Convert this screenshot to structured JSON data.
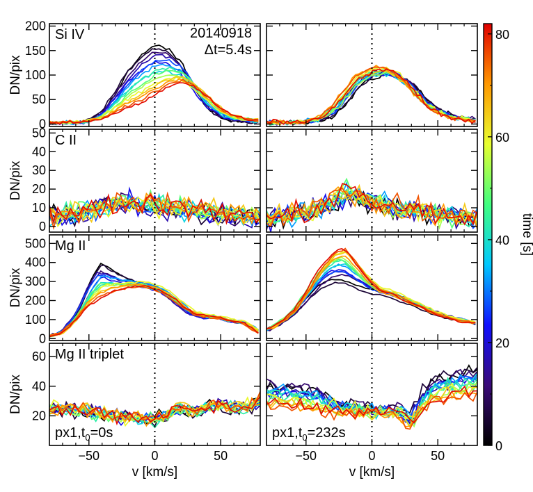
{
  "chart_data": {
    "type": "line",
    "shared_xlabel": "v [km/s]",
    "shared_ylabel": "DN/pix",
    "xlim": [
      -80,
      80
    ],
    "xticks": [
      -50,
      0,
      50
    ],
    "colorbar": {
      "label": "time [s]",
      "range": [
        0,
        82
      ],
      "ticks": [
        0,
        20,
        40,
        60,
        80
      ],
      "colormap": "rainbow",
      "stops": [
        "#000000",
        "#3a0a78",
        "#1010ff",
        "#00c8ff",
        "#40ff80",
        "#e8ff30",
        "#ff9800",
        "#e00000"
      ]
    },
    "annotations": {
      "date": "20140918",
      "cadence": "Δt=5.4s"
    },
    "rows": [
      {
        "label": "Si IV",
        "ylim": [
          -5,
          205
        ],
        "yticks": [
          0,
          50,
          100,
          150,
          200
        ]
      },
      {
        "label": "C II",
        "ylim": [
          -3,
          52
        ],
        "yticks": [
          0,
          10,
          20,
          30,
          40,
          50
        ]
      },
      {
        "label": "Mg II",
        "ylim": [
          -10,
          545
        ],
        "yticks": [
          0,
          100,
          200,
          300,
          400,
          500
        ]
      },
      {
        "label": "Mg II triplet",
        "ylim": [
          0,
          69
        ],
        "yticks": [
          20,
          40,
          60
        ]
      }
    ],
    "columns": [
      {
        "pixel": "px1",
        "t0_prefix": "px1,t",
        "t0_sub": "0",
        "t0_value": "=0s"
      },
      {
        "pixel": "px1",
        "t0_prefix": "px1,t",
        "t0_sub": "0",
        "t0_value": "=232s"
      }
    ],
    "series_times": [
      0,
      5.4,
      10.8,
      16.2,
      21.6,
      27,
      32.4,
      37.8,
      43.2,
      48.6,
      54,
      59.4,
      64.8,
      70.2,
      75.6,
      81
    ],
    "panels": [
      {
        "row": 0,
        "col": 0,
        "profile_early": [
          [
            -80,
            2
          ],
          [
            -60,
            3
          ],
          [
            -50,
            6
          ],
          [
            -40,
            25
          ],
          [
            -30,
            65
          ],
          [
            -20,
            110
          ],
          [
            -10,
            140
          ],
          [
            0,
            158
          ],
          [
            10,
            150
          ],
          [
            20,
            120
          ],
          [
            30,
            70
          ],
          [
            40,
            30
          ],
          [
            50,
            12
          ],
          [
            60,
            6
          ],
          [
            80,
            3
          ]
        ],
        "profile_late": [
          [
            -80,
            3
          ],
          [
            -60,
            4
          ],
          [
            -50,
            6
          ],
          [
            -40,
            10
          ],
          [
            -30,
            20
          ],
          [
            -20,
            30
          ],
          [
            -10,
            40
          ],
          [
            0,
            55
          ],
          [
            10,
            72
          ],
          [
            20,
            83
          ],
          [
            30,
            76
          ],
          [
            40,
            56
          ],
          [
            50,
            32
          ],
          [
            60,
            16
          ],
          [
            80,
            6
          ]
        ],
        "noise": 3
      },
      {
        "row": 0,
        "col": 1,
        "profile_early": [
          [
            -80,
            2
          ],
          [
            -60,
            2
          ],
          [
            -50,
            4
          ],
          [
            -40,
            8
          ],
          [
            -30,
            18
          ],
          [
            -20,
            45
          ],
          [
            -10,
            80
          ],
          [
            0,
            95
          ],
          [
            10,
            102
          ],
          [
            20,
            98
          ],
          [
            30,
            80
          ],
          [
            40,
            52
          ],
          [
            50,
            30
          ],
          [
            60,
            18
          ],
          [
            80,
            8
          ]
        ],
        "profile_late": [
          [
            -80,
            3
          ],
          [
            -60,
            4
          ],
          [
            -50,
            6
          ],
          [
            -40,
            14
          ],
          [
            -30,
            35
          ],
          [
            -20,
            70
          ],
          [
            -10,
            100
          ],
          [
            0,
            112
          ],
          [
            10,
            115
          ],
          [
            20,
            100
          ],
          [
            30,
            70
          ],
          [
            40,
            40
          ],
          [
            50,
            22
          ],
          [
            60,
            12
          ],
          [
            80,
            5
          ]
        ],
        "noise": 4
      },
      {
        "row": 1,
        "col": 0,
        "profile_early": [
          [
            -80,
            5
          ],
          [
            -60,
            6
          ],
          [
            -40,
            12
          ],
          [
            -20,
            13
          ],
          [
            0,
            11
          ],
          [
            20,
            9
          ],
          [
            40,
            7
          ],
          [
            60,
            5
          ],
          [
            80,
            4
          ]
        ],
        "profile_late": [
          [
            -80,
            6
          ],
          [
            -60,
            6
          ],
          [
            -40,
            10
          ],
          [
            -20,
            12
          ],
          [
            0,
            12
          ],
          [
            20,
            11
          ],
          [
            40,
            9
          ],
          [
            60,
            7
          ],
          [
            80,
            5
          ]
        ],
        "noise": 5
      },
      {
        "row": 1,
        "col": 1,
        "profile_early": [
          [
            -80,
            4
          ],
          [
            -60,
            6
          ],
          [
            -40,
            10
          ],
          [
            -20,
            16
          ],
          [
            0,
            12
          ],
          [
            20,
            9
          ],
          [
            40,
            7
          ],
          [
            60,
            6
          ],
          [
            80,
            5
          ]
        ],
        "profile_late": [
          [
            -80,
            5
          ],
          [
            -60,
            6
          ],
          [
            -40,
            10
          ],
          [
            -20,
            22
          ],
          [
            0,
            13
          ],
          [
            20,
            10
          ],
          [
            40,
            8
          ],
          [
            60,
            6
          ],
          [
            80,
            5
          ]
        ],
        "noise": 5
      },
      {
        "row": 2,
        "col": 0,
        "profile_early": [
          [
            -80,
            15
          ],
          [
            -70,
            40
          ],
          [
            -60,
            130
          ],
          [
            -50,
            300
          ],
          [
            -42,
            390
          ],
          [
            -35,
            360
          ],
          [
            -25,
            320
          ],
          [
            -15,
            290
          ],
          [
            -5,
            275
          ],
          [
            5,
            250
          ],
          [
            15,
            190
          ],
          [
            25,
            130
          ],
          [
            35,
            110
          ],
          [
            45,
            115
          ],
          [
            55,
            95
          ],
          [
            65,
            85
          ],
          [
            80,
            40
          ]
        ],
        "profile_late": [
          [
            -80,
            10
          ],
          [
            -70,
            30
          ],
          [
            -60,
            90
          ],
          [
            -50,
            170
          ],
          [
            -40,
            220
          ],
          [
            -30,
            255
          ],
          [
            -20,
            275
          ],
          [
            -10,
            285
          ],
          [
            0,
            272
          ],
          [
            10,
            240
          ],
          [
            20,
            190
          ],
          [
            30,
            140
          ],
          [
            40,
            120
          ],
          [
            50,
            110
          ],
          [
            60,
            95
          ],
          [
            70,
            80
          ],
          [
            80,
            30
          ]
        ],
        "noise": 5
      },
      {
        "row": 2,
        "col": 1,
        "profile_early": [
          [
            -80,
            40
          ],
          [
            -70,
            70
          ],
          [
            -60,
            120
          ],
          [
            -50,
            190
          ],
          [
            -40,
            260
          ],
          [
            -30,
            300
          ],
          [
            -20,
            295
          ],
          [
            -10,
            270
          ],
          [
            0,
            250
          ],
          [
            10,
            235
          ],
          [
            20,
            215
          ],
          [
            30,
            190
          ],
          [
            40,
            160
          ],
          [
            50,
            130
          ],
          [
            60,
            110
          ],
          [
            70,
            95
          ],
          [
            80,
            80
          ]
        ],
        "profile_late": [
          [
            -80,
            50
          ],
          [
            -70,
            90
          ],
          [
            -60,
            150
          ],
          [
            -50,
            260
          ],
          [
            -40,
            380
          ],
          [
            -30,
            460
          ],
          [
            -22,
            490
          ],
          [
            -15,
            430
          ],
          [
            -5,
            330
          ],
          [
            5,
            260
          ],
          [
            15,
            240
          ],
          [
            25,
            205
          ],
          [
            35,
            175
          ],
          [
            45,
            140
          ],
          [
            55,
            115
          ],
          [
            65,
            95
          ],
          [
            80,
            80
          ]
        ],
        "noise": 5
      },
      {
        "row": 3,
        "col": 0,
        "profile_early": [
          [
            -80,
            24
          ],
          [
            -60,
            24
          ],
          [
            -40,
            22
          ],
          [
            -20,
            20
          ],
          [
            0,
            18
          ],
          [
            10,
            20
          ],
          [
            20,
            25
          ],
          [
            30,
            22
          ],
          [
            40,
            26
          ],
          [
            50,
            28
          ],
          [
            60,
            24
          ],
          [
            70,
            26
          ],
          [
            80,
            30
          ]
        ],
        "profile_late": [
          [
            -80,
            26
          ],
          [
            -60,
            26
          ],
          [
            -40,
            22
          ],
          [
            -20,
            19
          ],
          [
            0,
            18
          ],
          [
            10,
            22
          ],
          [
            20,
            28
          ],
          [
            30,
            24
          ],
          [
            40,
            27
          ],
          [
            50,
            28
          ],
          [
            60,
            25
          ],
          [
            70,
            27
          ],
          [
            80,
            32
          ]
        ],
        "noise": 4
      },
      {
        "row": 3,
        "col": 1,
        "profile_early": [
          [
            -80,
            42
          ],
          [
            -60,
            40
          ],
          [
            -40,
            36
          ],
          [
            -20,
            28
          ],
          [
            0,
            25
          ],
          [
            10,
            24
          ],
          [
            20,
            26
          ],
          [
            30,
            20
          ],
          [
            40,
            38
          ],
          [
            50,
            45
          ],
          [
            60,
            48
          ],
          [
            70,
            50
          ],
          [
            80,
            52
          ]
        ],
        "profile_late": [
          [
            -80,
            28
          ],
          [
            -60,
            28
          ],
          [
            -40,
            24
          ],
          [
            -20,
            22
          ],
          [
            0,
            22
          ],
          [
            10,
            22
          ],
          [
            20,
            22
          ],
          [
            30,
            14
          ],
          [
            40,
            26
          ],
          [
            50,
            32
          ],
          [
            60,
            33
          ],
          [
            70,
            34
          ],
          [
            80,
            36
          ]
        ],
        "noise": 4
      }
    ]
  }
}
